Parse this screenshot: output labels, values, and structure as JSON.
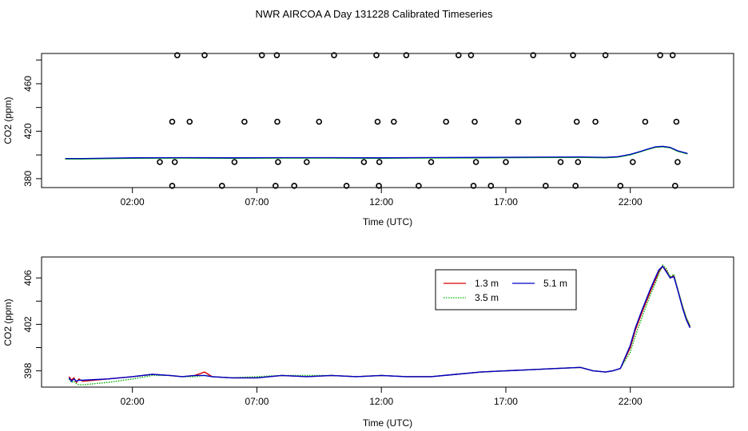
{
  "figure": {
    "title": "NWR AIRCOA A  Day 131228  Calibrated Timeseries"
  },
  "colors": {
    "background": "#ffffff",
    "axis": "#000000",
    "series_1_3m": "#d40000",
    "series_3_5m": "#00b000",
    "series_5_1m": "#0000c8",
    "flag_points": "#000000"
  },
  "chart_data": [
    {
      "type": "scatter",
      "panel": "top",
      "xlabel": "Time (UTC)",
      "ylabel": "CO2 (ppm)",
      "x_unit": "hours UTC",
      "xlim": [
        -1.65,
        26.15
      ],
      "ylim": [
        372.5,
        485.5
      ],
      "x_ticks": [
        2,
        7,
        12,
        17,
        22
      ],
      "x_tick_labels": [
        "02:00",
        "07:00",
        "12:00",
        "17:00",
        "22:00"
      ],
      "y_ticks": [
        380,
        420,
        460
      ],
      "y_tick_labels": [
        "380",
        "420",
        "460"
      ],
      "grid": false,
      "line_series": {
        "x": [
          -0.7,
          0,
          2,
          4,
          6,
          8,
          10,
          12,
          14,
          16,
          18,
          20,
          21,
          21.5,
          22,
          22.4,
          22.7,
          23.0,
          23.3,
          23.6,
          23.9,
          24.3
        ],
        "values": [
          397.0,
          397.0,
          397.6,
          397.7,
          397.6,
          397.7,
          397.7,
          397.6,
          397.8,
          397.9,
          398.1,
          398.3,
          398.0,
          398.5,
          400.5,
          403.0,
          405.0,
          406.8,
          407.3,
          406.4,
          403.5,
          401.2
        ]
      },
      "flag_points": {
        "x": [
          3.1,
          3.6,
          3.8,
          4.3,
          3.7,
          3.6,
          4.9,
          5.6,
          6.1,
          6.5,
          7.2,
          7.8,
          7.75,
          7.82,
          7.85,
          8.5,
          9.0,
          9.5,
          10.1,
          10.6,
          11.3,
          11.8,
          11.9,
          11.85,
          11.92,
          12.5,
          13.0,
          13.5,
          14.0,
          14.6,
          15.1,
          15.6,
          15.7,
          15.75,
          15.8,
          16.4,
          17.0,
          17.5,
          18.1,
          18.6,
          19.2,
          19.7,
          19.8,
          19.85,
          19.9,
          20.6,
          21.0,
          21.6,
          22.1,
          22.6,
          23.2,
          23.7,
          23.8,
          23.85,
          23.9
        ],
        "y": [
          394,
          374,
          484,
          428,
          394,
          428,
          484,
          374,
          394,
          428,
          484,
          484,
          374,
          428,
          394,
          374,
          394,
          428,
          484,
          374,
          394,
          484,
          374,
          428,
          394,
          428,
          484,
          374,
          394,
          428,
          484,
          484,
          374,
          428,
          394,
          374,
          394,
          428,
          484,
          374,
          394,
          484,
          374,
          428,
          394,
          428,
          484,
          374,
          394,
          428,
          484,
          484,
          374,
          428,
          394
        ]
      }
    },
    {
      "type": "line",
      "panel": "bottom",
      "xlabel": "Time (UTC)",
      "ylabel": "CO2 (ppm)",
      "x_unit": "hours UTC",
      "xlim": [
        -1.65,
        26.15
      ],
      "ylim": [
        396.6,
        407.8
      ],
      "x_ticks": [
        2,
        7,
        12,
        17,
        22
      ],
      "x_tick_labels": [
        "02:00",
        "07:00",
        "12:00",
        "17:00",
        "22:00"
      ],
      "y_ticks": [
        398,
        402,
        406
      ],
      "y_tick_labels": [
        "398",
        "402",
        "406"
      ],
      "grid": false,
      "legend_position": "top-right",
      "series": [
        {
          "name": "1.3 m",
          "x": [
            -0.55,
            -0.45,
            -0.35,
            -0.25,
            -0.15,
            0.0,
            1.0,
            2.0,
            2.8,
            3.5,
            4.0,
            4.5,
            4.9,
            5.2,
            6.0,
            7.0,
            8.0,
            9.0,
            10.0,
            11.0,
            12.0,
            13.0,
            14.0,
            15.0,
            16.0,
            17.0,
            18.0,
            19.0,
            20.0,
            20.5,
            21.0,
            21.3,
            21.6,
            22.0,
            22.2,
            22.5,
            22.8,
            23.0,
            23.15,
            23.3,
            23.45,
            23.6,
            23.75,
            23.9,
            24.1,
            24.25,
            24.4
          ],
          "values": [
            397.5,
            397.2,
            397.4,
            397.0,
            397.3,
            397.1,
            397.3,
            397.5,
            397.7,
            397.6,
            397.5,
            397.6,
            397.9,
            397.5,
            397.4,
            397.4,
            397.6,
            397.5,
            397.6,
            397.5,
            397.6,
            397.5,
            397.5,
            397.7,
            397.9,
            398.0,
            398.1,
            398.2,
            398.3,
            398.0,
            397.9,
            398.0,
            398.2,
            400.0,
            401.5,
            403.2,
            404.8,
            405.8,
            406.5,
            407.0,
            406.6,
            406.0,
            406.2,
            405.0,
            403.5,
            402.5,
            401.8
          ]
        },
        {
          "name": "3.5 m",
          "x": [
            -0.55,
            -0.45,
            -0.35,
            -0.25,
            -0.15,
            0.0,
            1.0,
            2.0,
            2.8,
            3.5,
            4.0,
            4.5,
            4.9,
            5.2,
            6.0,
            7.0,
            8.0,
            9.0,
            10.0,
            11.0,
            12.0,
            13.0,
            14.0,
            15.0,
            16.0,
            17.0,
            18.0,
            19.0,
            20.0,
            20.5,
            21.0,
            21.3,
            21.6,
            22.0,
            22.2,
            22.5,
            22.8,
            23.0,
            23.15,
            23.3,
            23.45,
            23.6,
            23.75,
            23.9,
            24.1,
            24.25,
            24.4
          ],
          "values": [
            397.3,
            397.0,
            397.1,
            396.9,
            396.8,
            396.8,
            397.0,
            397.3,
            397.6,
            397.6,
            397.5,
            397.5,
            397.6,
            397.5,
            397.4,
            397.5,
            397.6,
            397.6,
            397.6,
            397.5,
            397.6,
            397.5,
            397.5,
            397.7,
            397.9,
            398.0,
            398.1,
            398.2,
            398.3,
            398.0,
            397.9,
            398.0,
            398.2,
            399.6,
            401.0,
            402.8,
            404.5,
            405.5,
            406.4,
            407.1,
            406.8,
            406.1,
            406.3,
            405.1,
            403.6,
            402.6,
            401.9
          ]
        },
        {
          "name": "5.1 m",
          "x": [
            -0.55,
            -0.45,
            -0.35,
            -0.25,
            -0.15,
            0.0,
            1.0,
            2.0,
            2.8,
            3.5,
            4.0,
            4.5,
            4.9,
            5.2,
            6.0,
            7.0,
            8.0,
            9.0,
            10.0,
            11.0,
            12.0,
            13.0,
            14.0,
            15.0,
            16.0,
            17.0,
            18.0,
            19.0,
            20.0,
            20.5,
            21.0,
            21.3,
            21.6,
            22.0,
            22.2,
            22.5,
            22.8,
            23.0,
            23.15,
            23.3,
            23.45,
            23.6,
            23.75,
            23.9,
            24.1,
            24.25,
            24.4
          ],
          "values": [
            397.4,
            397.1,
            397.3,
            397.1,
            397.2,
            397.2,
            397.3,
            397.5,
            397.7,
            397.6,
            397.5,
            397.6,
            397.6,
            397.5,
            397.4,
            397.4,
            397.6,
            397.5,
            397.6,
            397.5,
            397.6,
            397.5,
            397.5,
            397.7,
            397.9,
            398.0,
            398.1,
            398.2,
            398.3,
            398.0,
            397.9,
            398.0,
            398.2,
            400.2,
            401.7,
            403.4,
            405.0,
            406.0,
            406.7,
            407.0,
            406.5,
            406.0,
            406.1,
            405.0,
            403.4,
            402.4,
            401.7
          ]
        }
      ]
    }
  ]
}
